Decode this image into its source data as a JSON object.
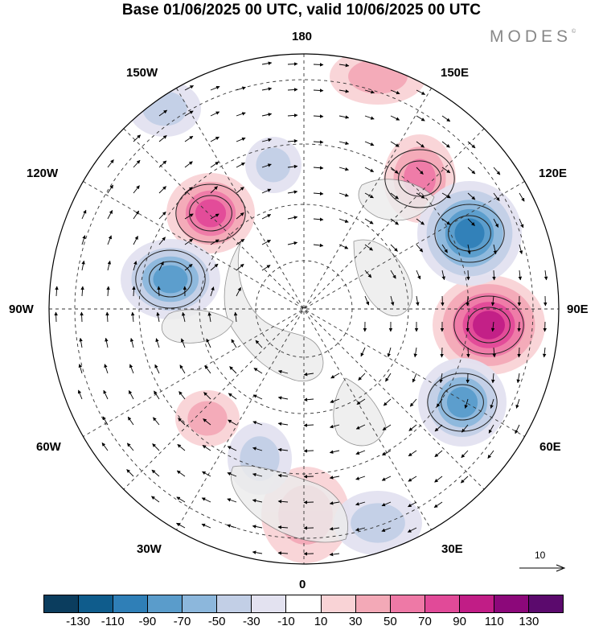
{
  "title": "Base 01/06/2025 00 UTC, valid 10/06/2025 00 UTC",
  "brand": {
    "text": "MODES",
    "mark": "©"
  },
  "longitude_labels": {
    "top": "180",
    "bottom": "0",
    "left": "90W",
    "right": "90E",
    "upper_left_outer": "150W",
    "upper_left_inner": "120W",
    "upper_right_outer": "150E",
    "upper_right_inner": "120E",
    "lower_left_outer": "30W",
    "lower_left_inner": "60W",
    "lower_right_outer": "30E",
    "lower_right_inner": "60E"
  },
  "reference_vector": {
    "value": "10",
    "icon": "right-arrow-icon"
  },
  "colorbar": {
    "colors": [
      "#0b3d5e",
      "#0f5c8c",
      "#2f7fb7",
      "#5a9ccb",
      "#8cb7dc",
      "#c2cfe6",
      "#e3e2f0",
      "#ffffff",
      "#f9d3d6",
      "#f3a9b7",
      "#ee79a6",
      "#e14a98",
      "#c11d86",
      "#8c087a",
      "#5b0a6d"
    ],
    "tick_labels": [
      "-130",
      "-110",
      "-90",
      "-70",
      "-50",
      "-30",
      "-10",
      "10",
      "30",
      "50",
      "70",
      "90",
      "110",
      "130"
    ]
  },
  "map": {
    "projection": "north polar stereographic",
    "anomalies": [
      {
        "name": "pink-high-120E-60N",
        "value": 70
      },
      {
        "name": "pink-high-95E",
        "value": 110
      },
      {
        "name": "pink-high-120W",
        "value": 90
      },
      {
        "name": "blue-low-100W",
        "value": -90
      },
      {
        "name": "blue-low-110E",
        "value": -110
      },
      {
        "name": "blue-low-60E",
        "value": -90
      },
      {
        "name": "pink-high-150E-N",
        "value": 50
      },
      {
        "name": "pink-high-10E-Europe",
        "value": 50
      },
      {
        "name": "blue-low-35E",
        "value": -50
      },
      {
        "name": "pink-high-45W-Atlantic",
        "value": 50
      },
      {
        "name": "blue-low-25W",
        "value": -50
      },
      {
        "name": "blue-low-150W",
        "value": -50
      },
      {
        "name": "blue-low-170W-N",
        "value": -50
      }
    ]
  }
}
